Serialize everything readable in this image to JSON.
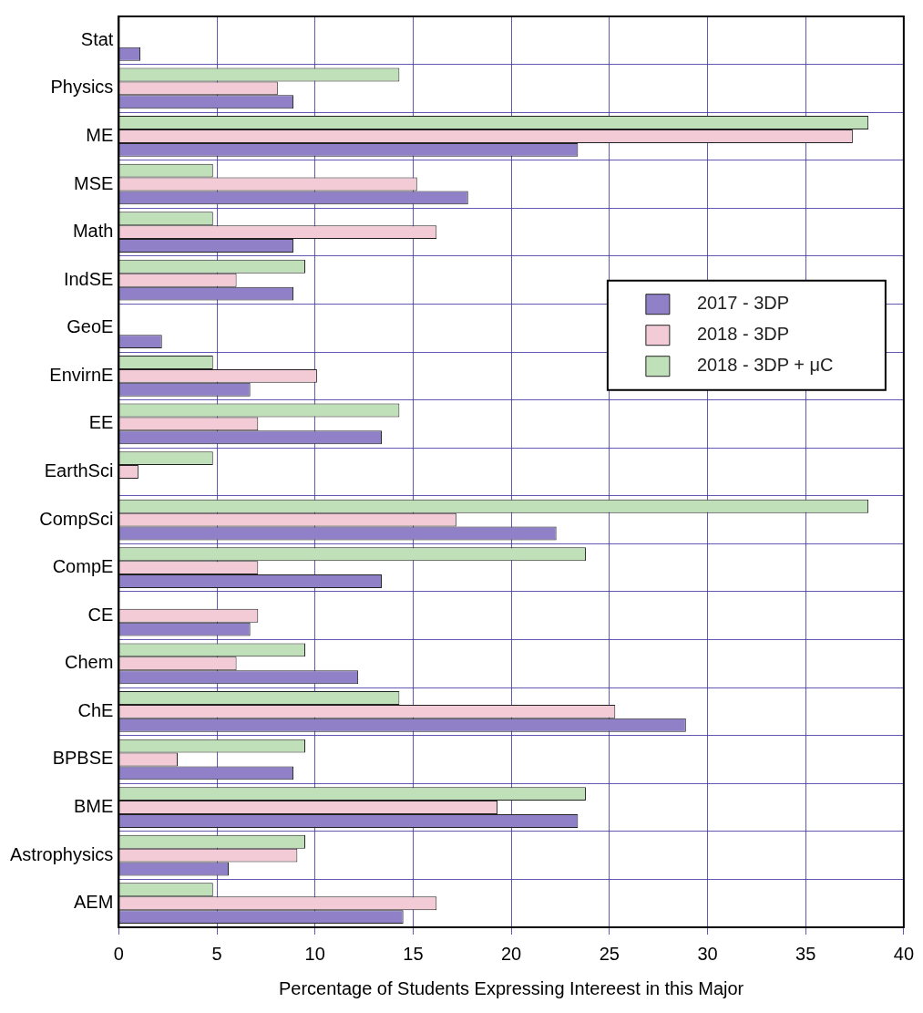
{
  "chart_data": {
    "type": "bar",
    "orientation": "horizontal",
    "xlabel": "Percentage of Students Expressing Intereest in this Major",
    "categories": [
      "Stat",
      "Physics",
      "ME",
      "MSE",
      "Math",
      "IndSE",
      "GeoE",
      "EnvirnE",
      "EE",
      "EarthSci",
      "CompSci",
      "CompE",
      "CE",
      "Chem",
      "ChE",
      "BPBSE",
      "BME",
      "Astrophysics",
      "AEM"
    ],
    "series": [
      {
        "name": "2017 - 3DP",
        "color": "#8f80c8",
        "values": [
          1.1,
          8.9,
          23.4,
          17.8,
          8.9,
          8.9,
          2.2,
          6.7,
          13.4,
          null,
          22.3,
          13.4,
          6.7,
          12.2,
          28.9,
          8.9,
          23.4,
          5.6,
          14.5
        ]
      },
      {
        "name": "2018 - 3DP",
        "color": "#f2cbd6",
        "values": [
          null,
          8.1,
          37.4,
          15.2,
          16.2,
          6.0,
          null,
          10.1,
          7.1,
          1.0,
          17.2,
          7.1,
          7.1,
          6.0,
          25.3,
          3.0,
          19.3,
          9.1,
          16.2
        ]
      },
      {
        "name": "2018 - 3DP + μC",
        "color": "#bfe0b8",
        "values": [
          null,
          14.3,
          38.2,
          4.8,
          4.8,
          9.5,
          null,
          4.8,
          14.3,
          4.8,
          38.2,
          23.8,
          null,
          9.5,
          14.3,
          9.5,
          23.8,
          9.5,
          4.8
        ]
      }
    ],
    "xlim": [
      0,
      40
    ],
    "xticks": [
      0,
      5,
      10,
      15,
      20,
      25,
      30,
      35,
      40
    ],
    "grid": true,
    "legend": "center right"
  }
}
